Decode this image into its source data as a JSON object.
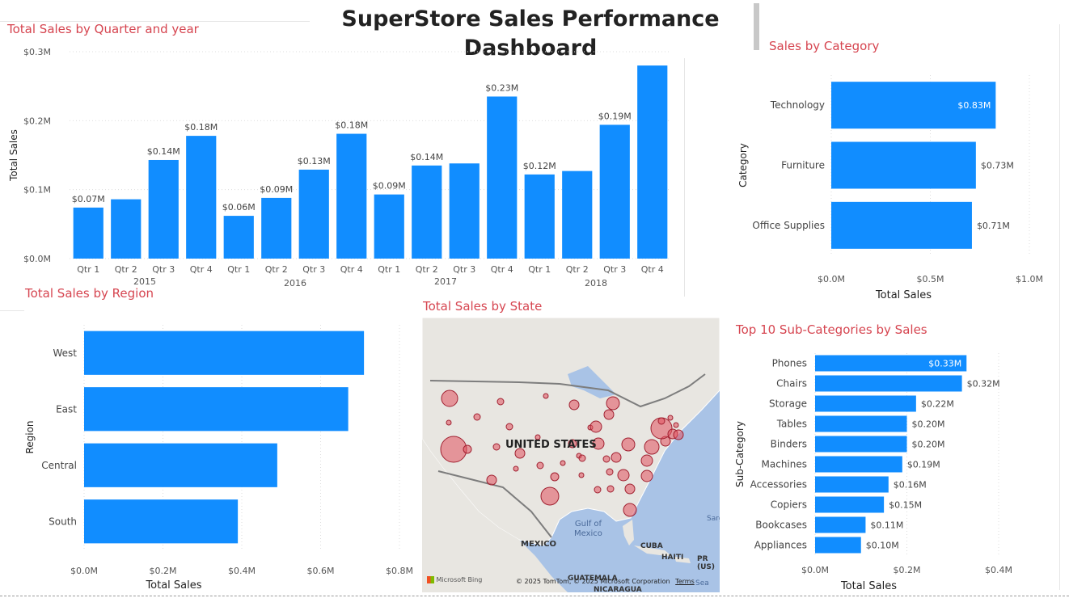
{
  "page_title": "SuperStore Sales Performance Dashboard",
  "colors": {
    "bar": "#118dff",
    "title": "#d64550",
    "bubble": "#e0505e"
  },
  "chart_data": [
    {
      "id": "quarter",
      "type": "bar",
      "title": "Total Sales by Quarter and year",
      "ylabel": "Total Sales",
      "xlabel": "",
      "ylim": [
        0,
        0.3
      ],
      "yticks": [
        "$0.0M",
        "$0.1M",
        "$0.2M",
        "$0.3M"
      ],
      "years": [
        "2015",
        "2016",
        "2017",
        "2018"
      ],
      "categories": [
        "Qtr 1",
        "Qtr 2",
        "Qtr 3",
        "Qtr 4",
        "Qtr 1",
        "Qtr 2",
        "Qtr 3",
        "Qtr 4",
        "Qtr 1",
        "Qtr 2",
        "Qtr 3",
        "Qtr 4",
        "Qtr 1",
        "Qtr 2",
        "Qtr 3",
        "Qtr 4"
      ],
      "values": [
        0.074,
        0.086,
        0.143,
        0.178,
        0.062,
        0.088,
        0.129,
        0.181,
        0.093,
        0.135,
        0.138,
        0.235,
        0.122,
        0.127,
        0.194,
        0.28
      ],
      "labels": [
        "$0.07M",
        "",
        "$0.14M",
        "$0.18M",
        "$0.06M",
        "$0.09M",
        "$0.13M",
        "$0.18M",
        "$0.09M",
        "$0.14M",
        "",
        "$0.23M",
        "$0.12M",
        "",
        "$0.19M",
        ""
      ],
      "grid": true
    },
    {
      "id": "category",
      "type": "bar",
      "orientation": "horizontal",
      "title": "Sales by Category",
      "xlabel": "Total Sales",
      "ylabel": "Category",
      "xlim": [
        0,
        1.0
      ],
      "xticks": [
        "$0.0M",
        "$0.5M",
        "$1.0M"
      ],
      "categories": [
        "Technology",
        "Furniture",
        "Office Supplies"
      ],
      "values": [
        0.83,
        0.73,
        0.71
      ],
      "labels": [
        "$0.83M",
        "$0.73M",
        "$0.71M"
      ],
      "grid": true
    },
    {
      "id": "region",
      "type": "bar",
      "orientation": "horizontal",
      "title": "Total Sales by Region",
      "xlabel": "Total Sales",
      "ylabel": "Region",
      "xlim": [
        0,
        0.8
      ],
      "xticks": [
        "$0.0M",
        "$0.2M",
        "$0.4M",
        "$0.6M",
        "$0.8M"
      ],
      "categories": [
        "West",
        "East",
        "Central",
        "South"
      ],
      "values": [
        0.71,
        0.67,
        0.49,
        0.39
      ],
      "grid": true
    },
    {
      "id": "subcat",
      "type": "bar",
      "orientation": "horizontal",
      "title": "Top 10 Sub-Categories by Sales",
      "xlabel": "Total Sales",
      "ylabel": "Sub-Category",
      "xlim": [
        0,
        0.4
      ],
      "xticks": [
        "$0.0M",
        "$0.2M",
        "$0.4M"
      ],
      "categories": [
        "Phones",
        "Chairs",
        "Storage",
        "Tables",
        "Binders",
        "Machines",
        "Accessories",
        "Copiers",
        "Bookcases",
        "Appliances"
      ],
      "values": [
        0.33,
        0.32,
        0.22,
        0.2,
        0.2,
        0.19,
        0.16,
        0.15,
        0.11,
        0.1
      ],
      "labels": [
        "$0.33M",
        "$0.32M",
        "$0.22M",
        "$0.20M",
        "$0.20M",
        "$0.19M",
        "$0.16M",
        "$0.15M",
        "$0.11M",
        "$0.10M"
      ],
      "grid": true
    }
  ],
  "map": {
    "title": "Total Sales by State",
    "country_label": "UNITED STATES",
    "water_label": "Gulf of\nMexico",
    "labels": [
      "MEXICO",
      "CUBA",
      "HAITI",
      "PR (US)",
      "GUATEMALA",
      "NICARAGUA",
      "Sarg",
      "Sea"
    ],
    "provider": "Microsoft Bing",
    "copyright": "© 2025 TomTom, © 2025 Microsoft Corporation",
    "terms": "Terms"
  }
}
